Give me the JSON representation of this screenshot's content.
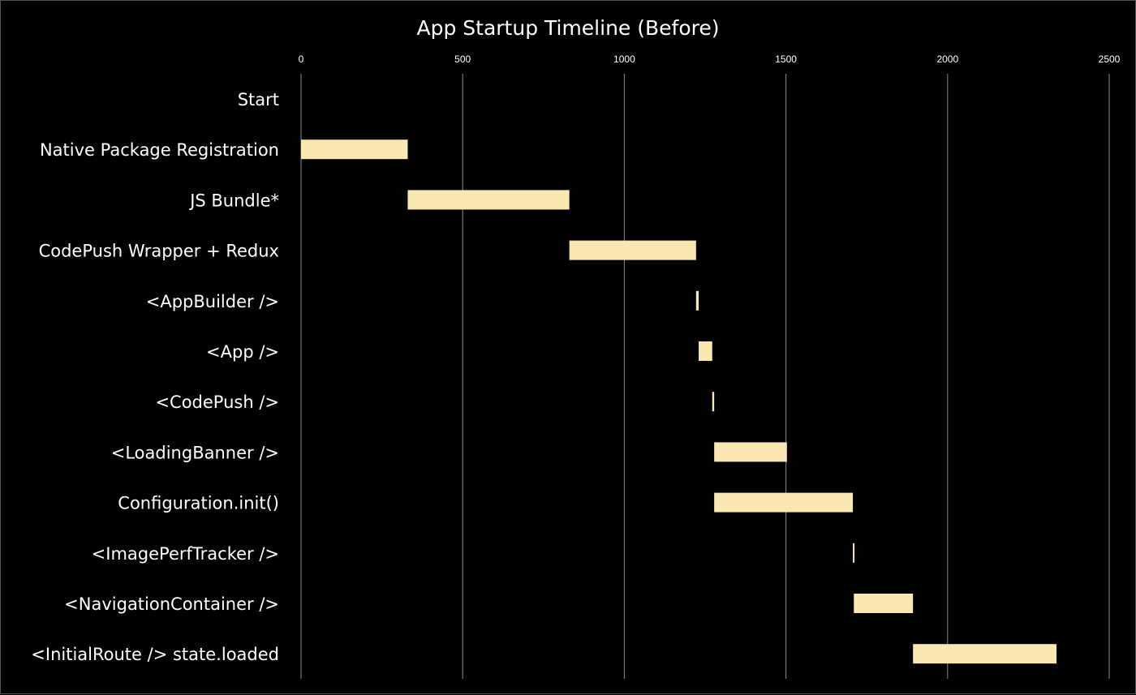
{
  "chart_data": {
    "type": "bar",
    "subtype": "gantt-horizontal",
    "title": "App Startup Timeline (Before)",
    "xlabel": "",
    "ylabel": "",
    "xlim": [
      0,
      2500
    ],
    "x_ticks": [
      0,
      500,
      1000,
      1500,
      2000,
      2500
    ],
    "x_axis_position": "top",
    "grid": "vertical",
    "legend": "none",
    "bar_color": "#f9e8b2",
    "background": "#000000",
    "tasks": [
      {
        "label": "Start",
        "start": 0,
        "end": 0
      },
      {
        "label": "Native Package Registration",
        "start": 0,
        "end": 330
      },
      {
        "label": "JS Bundle*",
        "start": 330,
        "end": 830
      },
      {
        "label": "CodePush Wrapper + Redux",
        "start": 830,
        "end": 1222
      },
      {
        "label": "<AppBuilder />",
        "start": 1222,
        "end": 1230
      },
      {
        "label": "<App />",
        "start": 1230,
        "end": 1272
      },
      {
        "label": "<CodePush />",
        "start": 1272,
        "end": 1278
      },
      {
        "label": "<LoadingBanner />",
        "start": 1278,
        "end": 1503
      },
      {
        "label": "Configuration.init()",
        "start": 1278,
        "end": 1707
      },
      {
        "label": "<ImagePerfTracker />",
        "start": 1707,
        "end": 1710
      },
      {
        "label": "<NavigationContainer />",
        "start": 1710,
        "end": 1893
      },
      {
        "label": "<InitialRoute /> state.loaded",
        "start": 1893,
        "end": 2337
      }
    ]
  }
}
